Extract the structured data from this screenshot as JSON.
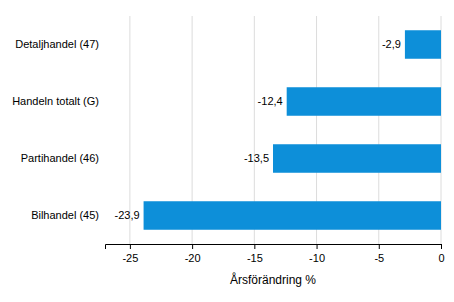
{
  "chart_data": {
    "type": "bar",
    "orientation": "horizontal",
    "categories": [
      "Detaljhandel (47)",
      "Handeln totalt (G)",
      "Partihandel (46)",
      "Bilhandel (45)"
    ],
    "values": [
      -2.9,
      -12.4,
      -13.5,
      -23.9
    ],
    "value_labels": [
      "-2,9",
      "-12,4",
      "-13,5",
      "-23,9"
    ],
    "data_labels": true,
    "color": "#0d8fd9",
    "x_label": "Årsförändring %",
    "xlim": [
      -27,
      0
    ],
    "xticks": [
      -25,
      -20,
      -15,
      -10,
      -5,
      0
    ],
    "grid": true
  }
}
